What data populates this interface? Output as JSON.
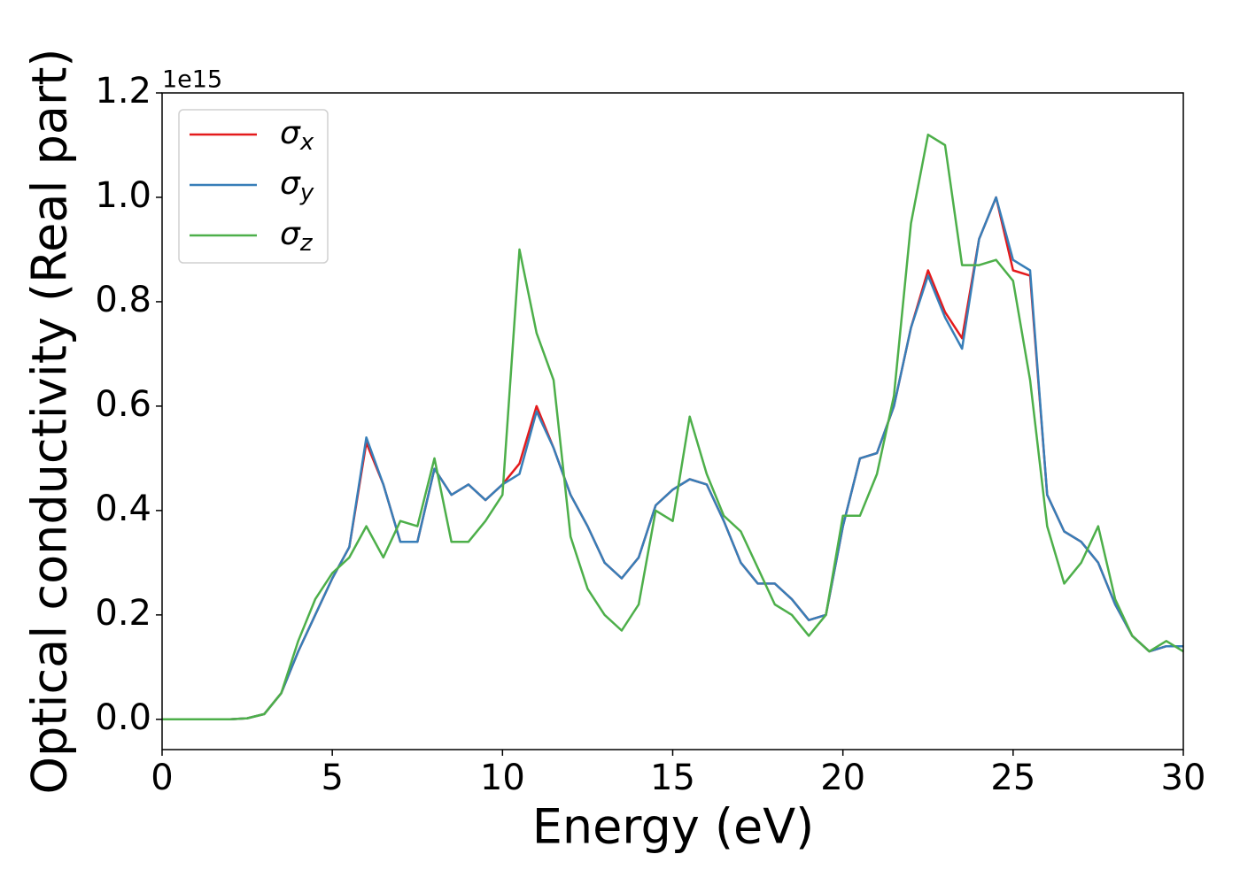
{
  "chart_data": {
    "type": "line",
    "xlabel": "Energy (eV)",
    "ylabel": "Optical conductivity (Real part)",
    "y_offset_label": "1e15",
    "x": [
      0,
      0.5,
      1,
      1.5,
      2,
      2.5,
      3,
      3.5,
      4,
      4.5,
      5,
      5.5,
      6,
      6.5,
      7,
      7.5,
      8,
      8.5,
      9,
      9.5,
      10,
      10.5,
      11,
      11.5,
      12,
      12.5,
      13,
      13.5,
      14,
      14.5,
      15,
      15.5,
      16,
      16.5,
      17,
      17.5,
      18,
      18.5,
      19,
      19.5,
      20,
      20.5,
      21,
      21.5,
      22,
      22.5,
      23,
      23.5,
      24,
      24.5,
      25,
      25.5,
      26,
      26.5,
      27,
      27.5,
      28,
      28.5,
      29,
      29.5,
      30
    ],
    "series": [
      {
        "name": "σx",
        "color": "#e41a1c",
        "values": [
          0,
          0,
          0,
          0,
          0,
          0.002,
          0.01,
          0.05,
          0.13,
          0.2,
          0.27,
          0.33,
          0.53,
          0.45,
          0.34,
          0.34,
          0.48,
          0.43,
          0.45,
          0.42,
          0.45,
          0.49,
          0.6,
          0.52,
          0.43,
          0.37,
          0.3,
          0.27,
          0.31,
          0.41,
          0.44,
          0.46,
          0.45,
          0.38,
          0.3,
          0.26,
          0.26,
          0.23,
          0.19,
          0.2,
          0.37,
          0.5,
          0.51,
          0.6,
          0.75,
          0.86,
          0.78,
          0.73,
          0.92,
          1.0,
          0.86,
          0.85,
          0.43,
          0.36,
          0.34,
          0.3,
          0.22,
          0.16,
          0.13,
          0.14,
          0.14
        ]
      },
      {
        "name": "σy",
        "color": "#377eb8",
        "values": [
          0,
          0,
          0,
          0,
          0,
          0.002,
          0.01,
          0.05,
          0.13,
          0.2,
          0.27,
          0.33,
          0.54,
          0.45,
          0.34,
          0.34,
          0.48,
          0.43,
          0.45,
          0.42,
          0.45,
          0.47,
          0.59,
          0.52,
          0.43,
          0.37,
          0.3,
          0.27,
          0.31,
          0.41,
          0.44,
          0.46,
          0.45,
          0.38,
          0.3,
          0.26,
          0.26,
          0.23,
          0.19,
          0.2,
          0.37,
          0.5,
          0.51,
          0.6,
          0.75,
          0.85,
          0.77,
          0.71,
          0.92,
          1.0,
          0.88,
          0.86,
          0.43,
          0.36,
          0.34,
          0.3,
          0.22,
          0.16,
          0.13,
          0.14,
          0.14
        ]
      },
      {
        "name": "σz",
        "color": "#4daf4a",
        "values": [
          0,
          0,
          0,
          0,
          0,
          0.002,
          0.01,
          0.05,
          0.15,
          0.23,
          0.28,
          0.31,
          0.37,
          0.31,
          0.38,
          0.37,
          0.5,
          0.34,
          0.34,
          0.38,
          0.43,
          0.9,
          0.74,
          0.65,
          0.35,
          0.25,
          0.2,
          0.17,
          0.22,
          0.4,
          0.38,
          0.58,
          0.47,
          0.39,
          0.36,
          0.29,
          0.22,
          0.2,
          0.16,
          0.2,
          0.39,
          0.39,
          0.47,
          0.62,
          0.95,
          1.12,
          1.1,
          0.87,
          0.87,
          0.88,
          0.84,
          0.65,
          0.37,
          0.26,
          0.3,
          0.37,
          0.23,
          0.16,
          0.13,
          0.15,
          0.13
        ]
      }
    ],
    "xlim": [
      0,
      30
    ],
    "xticks": [
      0,
      5,
      10,
      15,
      20,
      25,
      30
    ],
    "ylim": [
      -0.058,
      1.2
    ],
    "yticks": [
      {
        "value": 0,
        "label": "0.0"
      },
      {
        "value": 0.2,
        "label": "0.2"
      },
      {
        "value": 0.4,
        "label": "0.4"
      },
      {
        "value": 0.6,
        "label": "0.6"
      },
      {
        "value": 0.8,
        "label": "0.8"
      },
      {
        "value": 1.0,
        "label": "1.0"
      },
      {
        "value": 1.2,
        "label": "1.2"
      }
    ],
    "legend": "upper left",
    "grid": false
  }
}
